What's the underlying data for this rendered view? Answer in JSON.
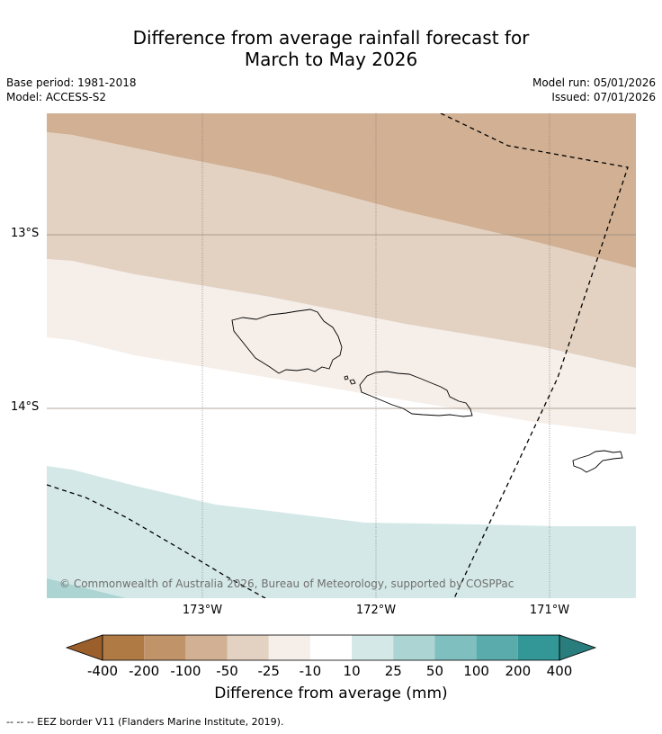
{
  "title": {
    "line1": "Difference from average rainfall forecast for",
    "line2": "March to May 2026"
  },
  "meta": {
    "base_period": "Base period: 1981-2018",
    "model": "Model: ACCESS-S2",
    "model_run": "Model run: 05/01/2026",
    "issued": "Issued: 07/01/2026"
  },
  "map": {
    "lat_ticks": [
      "13°S",
      "14°S"
    ],
    "lon_ticks": [
      "173°W",
      "172°W",
      "171°W"
    ],
    "copyright": "© Commonwealth of Australia 2026, Bureau of Meteorology, supported by COSPPac",
    "colors": {
      "band_m100_m50": "#d1b093",
      "band_m50_m25": "#e3d1c1",
      "band_m25_m10": "#f5eee9",
      "band_m10_10": "#ffffff",
      "band_10_25": "#d4e9e7",
      "band_25_50": "#acd4d3",
      "grid": "#9a8a7a",
      "eez": "#000000",
      "coast": "#000000"
    }
  },
  "colorbar": {
    "labels": [
      "-400",
      "-200",
      "-100",
      "-50",
      "-25",
      "-10",
      "10",
      "25",
      "50",
      "100",
      "200",
      "400"
    ],
    "colors": [
      "#9b5f2b",
      "#b07a45",
      "#c09369",
      "#d1b093",
      "#e3d1c1",
      "#f5eee9",
      "#ffffff",
      "#d4e9e7",
      "#acd4d3",
      "#80bfbf",
      "#5aabab",
      "#339797",
      "#2a7d7d"
    ],
    "title": "Difference from average (mm)"
  },
  "footnote": "--  --  -- EEZ border V11 (Flanders Marine Institute, 2019)."
}
